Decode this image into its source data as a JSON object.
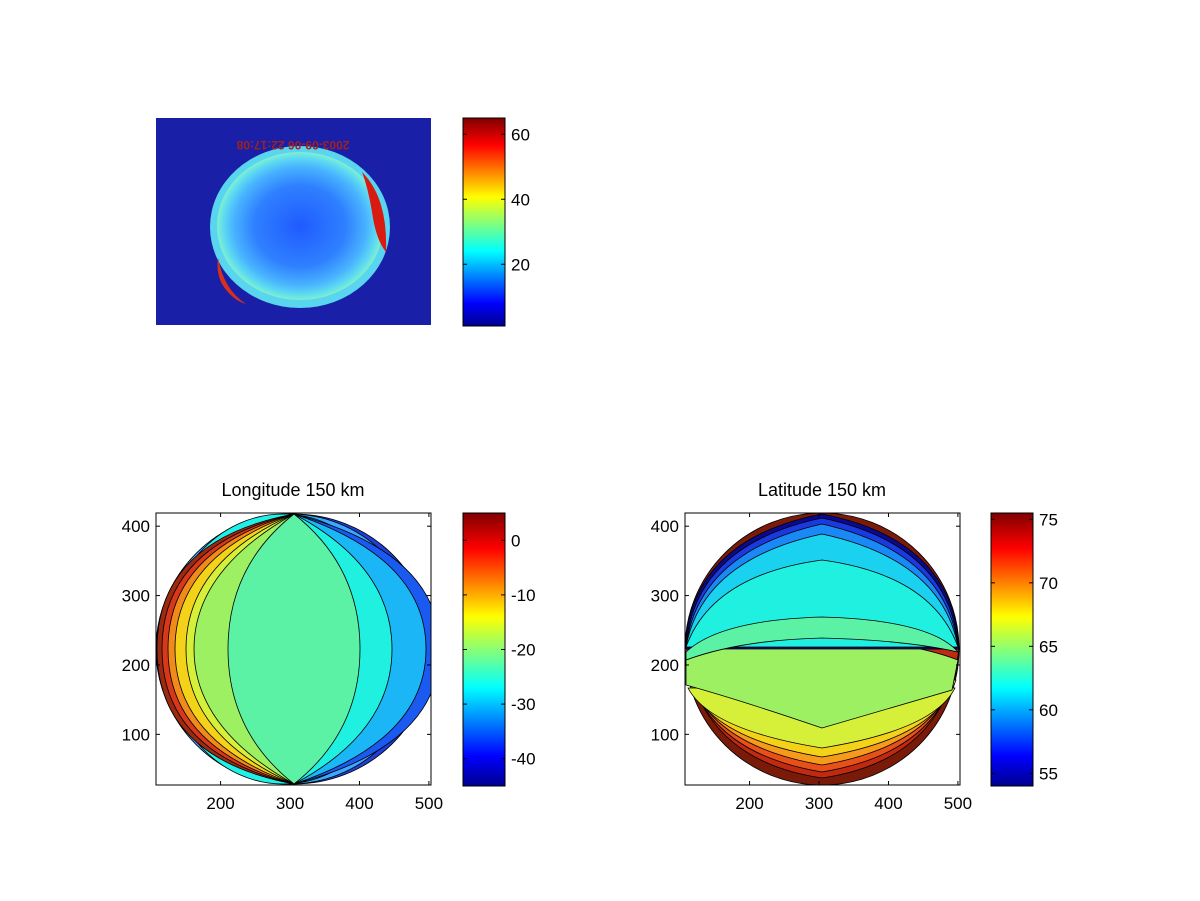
{
  "chart_data": [
    {
      "type": "heatmap",
      "title": "",
      "image_caption_text": "2003-09-06 22:17:08",
      "image_footer_text": "",
      "colorbar": {
        "ticks": [
          20,
          40,
          60
        ],
        "range": [
          1,
          65
        ]
      }
    },
    {
      "type": "heatmap",
      "title": "Longitude 150 km",
      "xticks": [
        200,
        300,
        400,
        500
      ],
      "yticks": [
        100,
        200,
        300,
        400
      ],
      "xlim": [
        107,
        503
      ],
      "ylim": [
        27,
        419
      ],
      "colorbar": {
        "ticks": [
          0,
          -10,
          -20,
          -30,
          -40
        ],
        "range": [
          -45,
          5
        ]
      }
    },
    {
      "type": "heatmap",
      "title": "Latitude 150 km",
      "xticks": [
        200,
        300,
        400,
        500
      ],
      "yticks": [
        100,
        200,
        300,
        400
      ],
      "xlim": [
        107,
        503
      ],
      "ylim": [
        27,
        419
      ],
      "colorbar": {
        "ticks": [
          55,
          60,
          65,
          70,
          75
        ],
        "range": [
          54,
          75.5
        ]
      }
    }
  ]
}
